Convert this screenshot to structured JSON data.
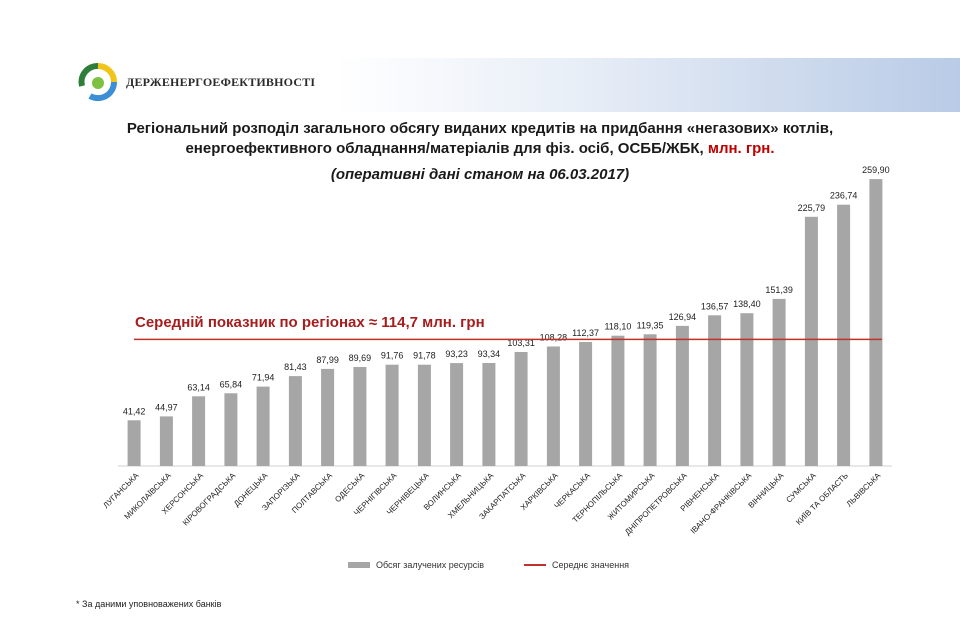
{
  "header": {
    "org_name": "ДЕРЖЕНЕРГОЕФЕКТИВНОСТІ",
    "title_line1": "Регіональний розподіл загального обсягу виданих кредитів на придбання «негазових» котлів,",
    "title_line2": "енергоефективного обладнання/матеріалів для фіз. осіб, ОСББ/ЖБК,",
    "title_unit": "млн. грн.",
    "subtitle": "(оперативні дані станом на 06.03.2017)"
  },
  "average_label": "Середній показник по регіонах ≈ 114,7 млн. грн",
  "footnote": "* За даними уповноважених банків",
  "legend": {
    "bars_label": "Обсяг залучених ресурсів",
    "line_label": "Середнє значення"
  },
  "colors": {
    "bar": "#a6a6a6",
    "average_line": "#c0302c",
    "average_text": "#a61d1d",
    "unit_text": "#c00000"
  },
  "chart_data": {
    "type": "bar",
    "categories": [
      "ЛУГАНСЬКА",
      "МИКОЛАЇВСЬКА",
      "ХЕРСОНСЬКА",
      "КІРОВОГРАДСЬКА",
      "ДОНЕЦЬКА",
      "ЗАПОРІЗЬКА",
      "ПОЛТАВСЬКА",
      "ОДЕСЬКА",
      "ЧЕРНІГІВСЬКА",
      "ЧЕРНІВЕЦЬКА",
      "ВОЛИНСЬКА",
      "ХМЕЛЬНИЦЬКА",
      "ЗАКАРПАТСЬКА",
      "ХАРКІВСЬКА",
      "ЧЕРКАСЬКА",
      "ТЕРНОПІЛЬСЬКА",
      "ЖИТОМИРСЬКА",
      "ДНІПРОПЕТРОВСЬКА",
      "РІВНЕНСЬКА",
      "ІВАНО-ФРАНКІВСЬКА",
      "ВІННИЦЬКА",
      "СУМСЬКА",
      "КИЇВ ТА ОБЛАСТЬ",
      "ЛЬВІВСЬКА"
    ],
    "series": [
      {
        "name": "Обсяг залучених ресурсів",
        "values": [
          41.42,
          44.97,
          63.14,
          65.84,
          71.94,
          81.43,
          87.99,
          89.69,
          91.76,
          91.78,
          93.23,
          93.34,
          103.31,
          108.28,
          112.37,
          118.1,
          119.35,
          126.94,
          136.57,
          138.4,
          151.39,
          225.79,
          236.74,
          259.9
        ],
        "labels": [
          "41,42",
          "44,97",
          "63,14",
          "65,84",
          "71,94",
          "81,43",
          "87,99",
          "89,69",
          "91,76",
          "91,78",
          "93,23",
          "93,34",
          "103,31",
          "108,28",
          "112,37",
          "118,10",
          "119,35",
          "126,94",
          "136,57",
          "138,40",
          "151,39",
          "225,79",
          "236,74",
          "259,90"
        ]
      }
    ],
    "average_value": 114.7,
    "ylim": [
      0,
      270
    ],
    "grid": false,
    "legend_position": "bottom"
  }
}
